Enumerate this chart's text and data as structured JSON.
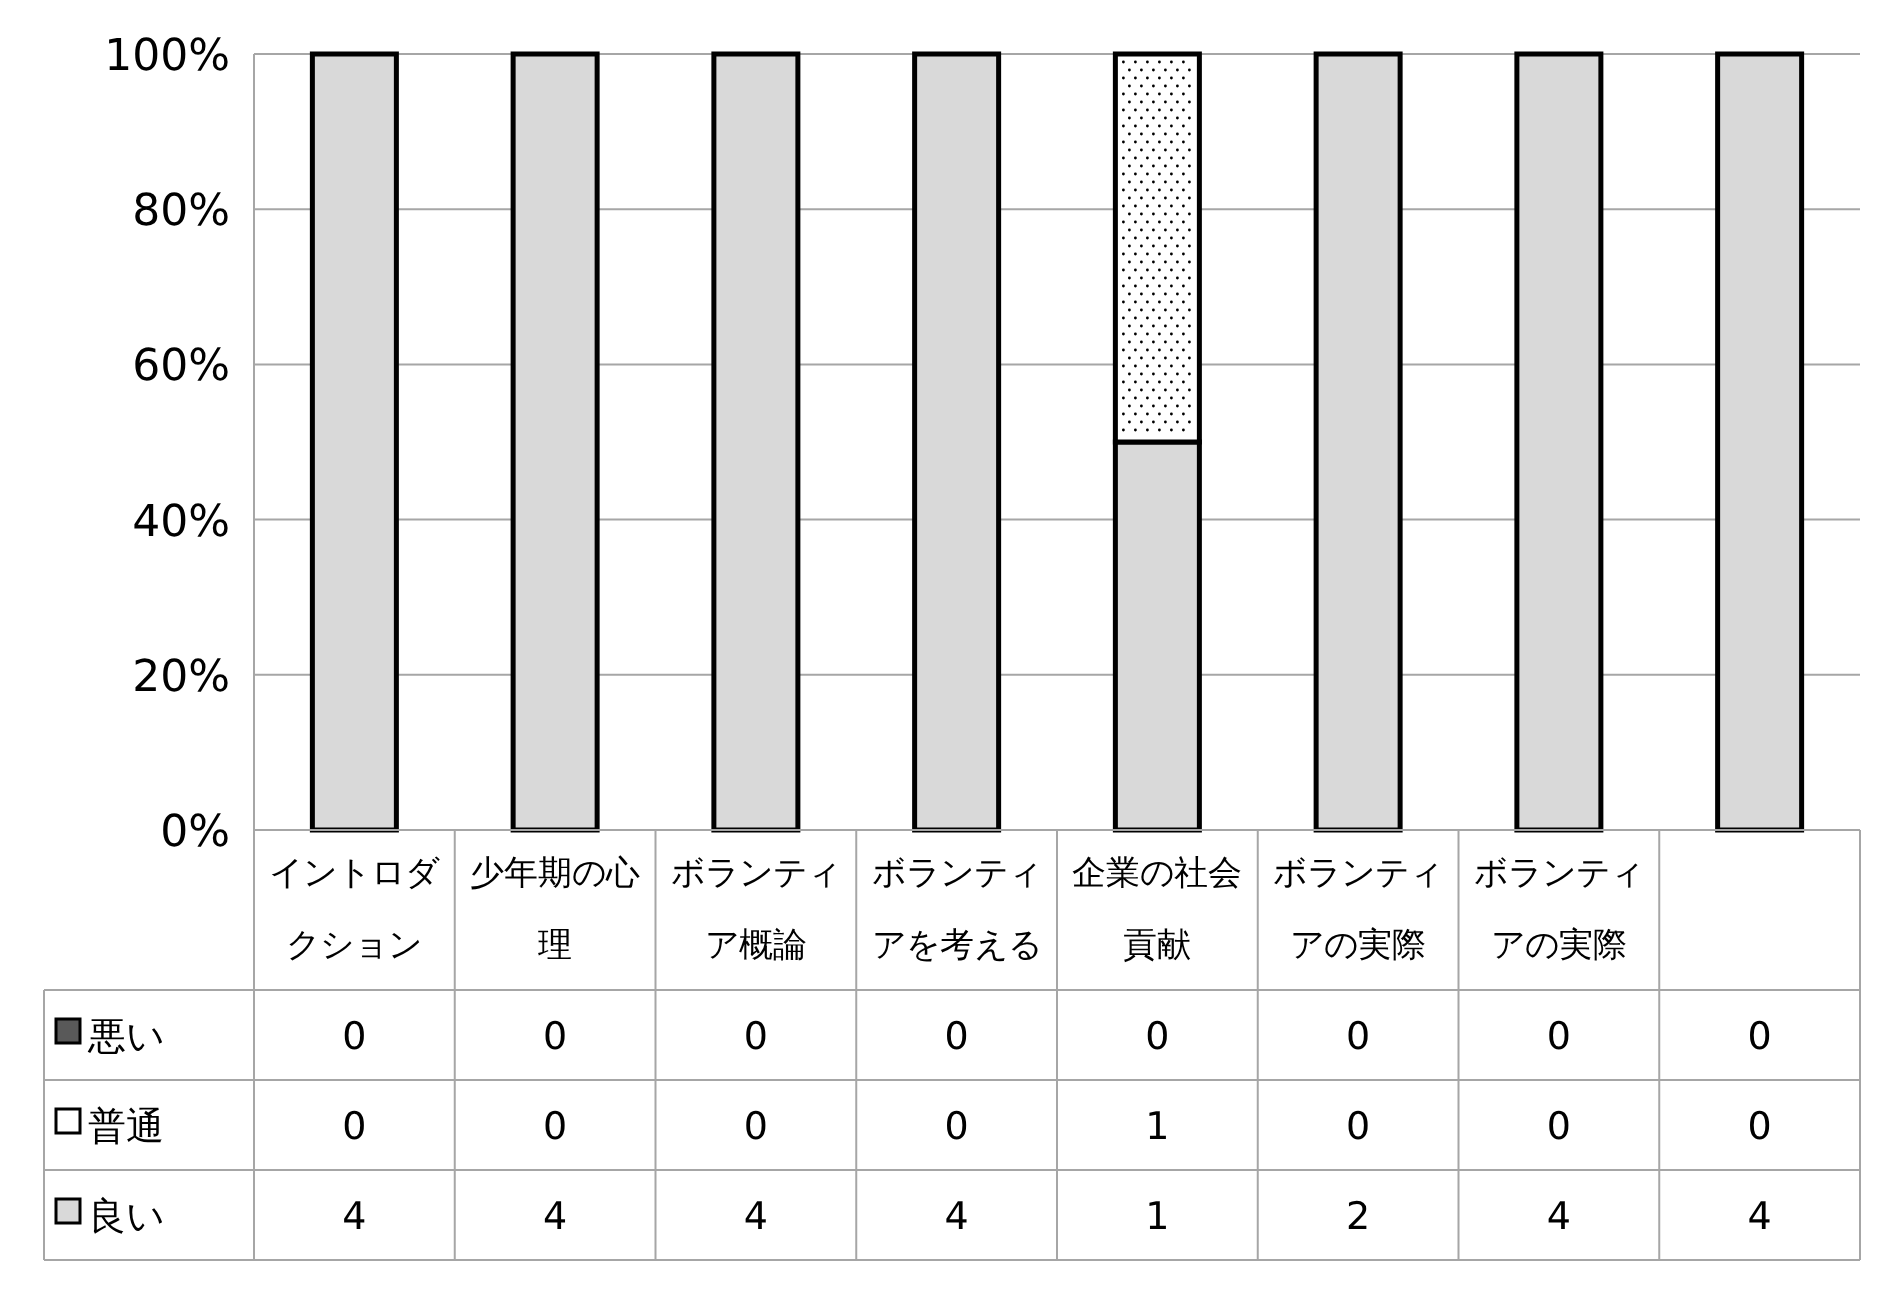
{
  "chart_data": {
    "type": "bar",
    "stacked": true,
    "categories": [
      "イントロダクション",
      "少年期の心理",
      "ボランティア概論",
      "ボランティアを考える",
      "企業の社会貢献",
      "ボランティアの実際",
      "ボランティアの実際",
      null
    ],
    "series": [
      {
        "name": "良い",
        "color": "#d9d9d9",
        "values": [
          100,
          100,
          100,
          100,
          50,
          100,
          100,
          100
        ]
      },
      {
        "name": "普通",
        "color": "#ffffff",
        "values": [
          0,
          0,
          0,
          0,
          50,
          0,
          0,
          0
        ]
      },
      {
        "name": "悪い",
        "color": "#595959",
        "values": [
          0,
          0,
          0,
          0,
          0,
          0,
          0,
          0
        ]
      }
    ],
    "annotations": [
      "0",
      "0",
      "0",
      "0",
      "0",
      "0",
      "0",
      "0",
      "0",
      "0",
      "0",
      "0",
      "1",
      "0",
      "0",
      "0",
      "4",
      "4",
      "4",
      "4",
      "1",
      "2",
      "4",
      "4"
    ],
    "ylim": [
      0,
      100
    ],
    "yticks": [
      {
        "value": 0,
        "label": "0%"
      },
      {
        "value": 20,
        "label": "20%"
      },
      {
        "value": 40,
        "label": "40%"
      },
      {
        "value": 60,
        "label": "60%"
      },
      {
        "value": 80,
        "label": "80%"
      },
      {
        "value": 100,
        "label": "100%"
      }
    ],
    "grid": "y",
    "legend": "bottom"
  }
}
